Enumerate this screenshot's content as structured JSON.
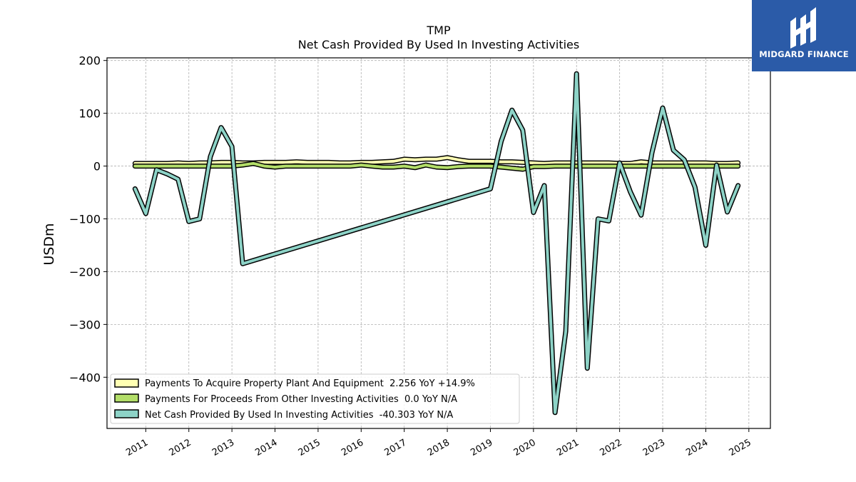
{
  "chart_data": {
    "type": "line",
    "title": "TMP",
    "subtitle": "Net Cash Provided By Used In Investing Activities",
    "ylabel": "USDm",
    "xlim": [
      2010.1,
      2025.5
    ],
    "ylim": [
      -497,
      205
    ],
    "yticks": [
      200,
      100,
      0,
      -100,
      -200,
      -300,
      -400
    ],
    "ytick_labels": [
      "200",
      "100",
      "0",
      "−100",
      "−200",
      "−300",
      "−400"
    ],
    "xticks": [
      2011,
      2012,
      2013,
      2014,
      2015,
      2016,
      2017,
      2018,
      2019,
      2020,
      2021,
      2022,
      2023,
      2024,
      2025
    ],
    "grid": true,
    "legend_position": "lower-left",
    "series": [
      {
        "name": "Payments To Acquire Property Plant And Equipment",
        "legend": "Payments To Acquire Property Plant And Equipment  2.256 YoY +14.9%",
        "color": "#ffffb3",
        "x": [
          2010.75,
          2011.0,
          2011.25,
          2011.5,
          2011.75,
          2012.0,
          2012.25,
          2012.5,
          2012.75,
          2013.0,
          2013.25,
          2013.5,
          2013.75,
          2014.0,
          2014.25,
          2014.5,
          2014.75,
          2015.0,
          2015.25,
          2015.5,
          2015.75,
          2016.0,
          2016.25,
          2016.5,
          2016.75,
          2017.0,
          2017.25,
          2017.5,
          2017.75,
          2018.0,
          2018.25,
          2018.5,
          2018.75,
          2019.0,
          2019.25,
          2019.5,
          2019.75,
          2020.0,
          2020.25,
          2020.5,
          2020.75,
          2021.0,
          2021.25,
          2021.5,
          2021.75,
          2022.0,
          2022.25,
          2022.5,
          2022.75,
          2023.0,
          2023.25,
          2023.5,
          2023.75,
          2024.0,
          2024.25,
          2024.5,
          2024.75
        ],
        "values": [
          5,
          5,
          5,
          5,
          6,
          5,
          6,
          6,
          7,
          7,
          6,
          6,
          7,
          7,
          7,
          8,
          7,
          7,
          7,
          6,
          6,
          7,
          7,
          8,
          9,
          13,
          12,
          13,
          13,
          16,
          12,
          9,
          9,
          9,
          8,
          8,
          7,
          6,
          5,
          6,
          6,
          6,
          6,
          6,
          6,
          5,
          5,
          8,
          6,
          6,
          6,
          6,
          6,
          6,
          5,
          5,
          6
        ]
      },
      {
        "name": "Payments For Proceeds From Other Investing Activities",
        "legend": "Payments For Proceeds From Other Investing Activities  0.0 YoY N/A",
        "color": "#b3de69",
        "x": [
          2010.75,
          2011.0,
          2011.25,
          2011.5,
          2011.75,
          2012.0,
          2012.25,
          2012.5,
          2012.75,
          2013.0,
          2013.25,
          2013.5,
          2013.75,
          2014.0,
          2014.25,
          2014.5,
          2014.75,
          2015.0,
          2015.25,
          2015.5,
          2015.75,
          2016.0,
          2016.25,
          2016.5,
          2016.75,
          2017.0,
          2017.25,
          2017.5,
          2017.75,
          2018.0,
          2018.25,
          2018.5,
          2018.75,
          2019.0,
          2019.25,
          2019.5,
          2019.75,
          2020.0,
          2020.25,
          2020.5,
          2020.75,
          2021.0,
          2021.25,
          2021.5,
          2021.75,
          2022.0,
          2022.25,
          2022.5,
          2022.75,
          2023.0,
          2023.25,
          2023.5,
          2023.75,
          2024.0,
          2024.25,
          2024.5,
          2024.75
        ],
        "values": [
          0,
          0,
          0,
          0,
          0,
          0,
          0,
          0,
          0,
          0,
          2,
          5,
          0,
          -2,
          0,
          0,
          0,
          0,
          0,
          0,
          0,
          2,
          0,
          -2,
          -2,
          0,
          -3,
          2,
          -2,
          -3,
          -1,
          0,
          0,
          0,
          -2,
          -4,
          -6,
          -1,
          -1,
          0,
          0,
          0,
          0,
          0,
          0,
          0,
          0,
          0,
          0,
          0,
          0,
          0,
          0,
          0,
          0,
          0,
          0
        ]
      },
      {
        "name": "Net Cash Provided By Used In Investing Activities",
        "legend": "Net Cash Provided By Used In Investing Activities  -40.303 YoY N/A",
        "color": "#8dd3c7",
        "x": [
          2010.75,
          2011.0,
          2011.25,
          2011.5,
          2011.75,
          2012.0,
          2012.25,
          2012.5,
          2012.75,
          2013.0,
          2013.25,
          2019.0,
          2019.25,
          2019.5,
          2019.75,
          2020.0,
          2020.25,
          2020.5,
          2020.75,
          2021.0,
          2021.25,
          2021.5,
          2021.75,
          2022.0,
          2022.25,
          2022.5,
          2022.75,
          2023.0,
          2023.25,
          2023.5,
          2023.75,
          2024.0,
          2024.25,
          2024.5,
          2024.75
        ],
        "values": [
          -43,
          -90,
          -7,
          -15,
          -25,
          -105,
          -100,
          18,
          73,
          37,
          -185,
          -43,
          47,
          106,
          68,
          -88,
          -37,
          -467,
          -313,
          175,
          -383,
          -100,
          -104,
          6,
          -49,
          -93,
          25,
          110,
          30,
          12,
          -40,
          -150,
          2,
          -87,
          -37
        ]
      }
    ]
  },
  "logo": {
    "text": "MIDGARD FINANCE",
    "color": "#2b5ba8"
  }
}
